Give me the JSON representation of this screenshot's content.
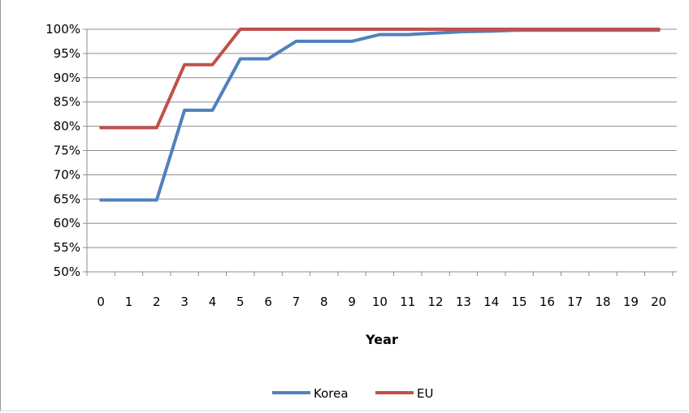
{
  "chart_data": {
    "type": "line",
    "title": "",
    "xlabel": "Year",
    "ylabel": "",
    "x": [
      0,
      1,
      2,
      3,
      4,
      5,
      6,
      7,
      8,
      9,
      10,
      11,
      12,
      13,
      14,
      15,
      16,
      17,
      18,
      19,
      20
    ],
    "ylim": [
      0.5,
      1.0
    ],
    "yticks": [
      0.5,
      0.55,
      0.6,
      0.65,
      0.7,
      0.75,
      0.8,
      0.85,
      0.9,
      0.95,
      1.0
    ],
    "ytick_labels": [
      "50%",
      "55%",
      "60%",
      "65%",
      "70%",
      "75%",
      "80%",
      "85%",
      "90%",
      "95%",
      "100%"
    ],
    "xtick_labels": [
      "0",
      "1",
      "2",
      "3",
      "4",
      "5",
      "6",
      "7",
      "8",
      "9",
      "10",
      "11",
      "12",
      "13",
      "14",
      "15",
      "16",
      "17",
      "18",
      "19",
      "20"
    ],
    "grid": true,
    "legend_position": "bottom",
    "series": [
      {
        "name": "Korea",
        "color": "#4f81bd",
        "values": [
          0.648,
          0.648,
          0.648,
          0.833,
          0.833,
          0.939,
          0.939,
          0.975,
          0.975,
          0.975,
          0.989,
          0.989,
          0.992,
          0.995,
          0.996,
          0.998,
          0.998,
          0.998,
          0.998,
          0.998,
          0.998
        ]
      },
      {
        "name": "EU",
        "color": "#c0504d",
        "values": [
          0.797,
          0.797,
          0.797,
          0.927,
          0.927,
          1.0,
          1.0,
          1.0,
          1.0,
          1.0,
          1.0,
          1.0,
          1.0,
          1.0,
          1.0,
          1.0,
          1.0,
          1.0,
          1.0,
          1.0,
          1.0
        ]
      }
    ]
  }
}
